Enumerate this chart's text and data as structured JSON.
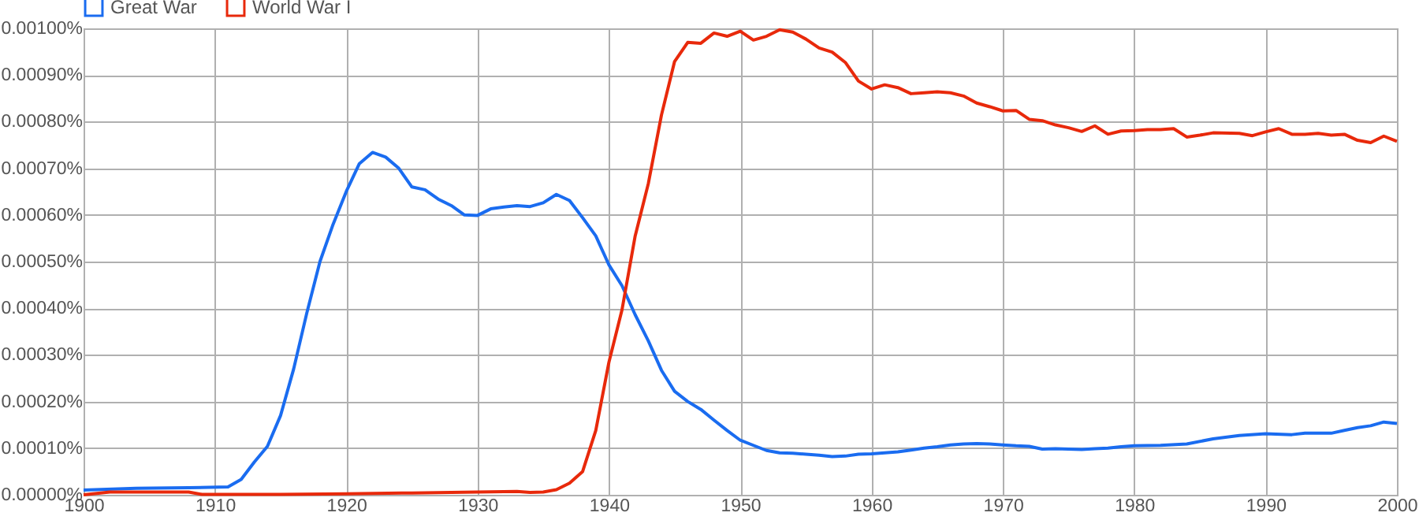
{
  "chart_data": {
    "type": "line",
    "legend": "top",
    "grid": true,
    "xlim": [
      1900,
      2000
    ],
    "xticks": [
      1900,
      1910,
      1920,
      1930,
      1940,
      1950,
      1960,
      1970,
      1980,
      1990,
      2000
    ],
    "ylim": [
      0,
      0.001
    ],
    "yticks": [
      {
        "value": 0,
        "label": "0.00000%"
      },
      {
        "value": 0.0001,
        "label": "0.00010%"
      },
      {
        "value": 0.0002,
        "label": "0.00020%"
      },
      {
        "value": 0.0003,
        "label": "0.00030%"
      },
      {
        "value": 0.0004,
        "label": "0.00040%"
      },
      {
        "value": 0.0005,
        "label": "0.00050%"
      },
      {
        "value": 0.0006,
        "label": "0.00060%"
      },
      {
        "value": 0.0007,
        "label": "0.00070%"
      },
      {
        "value": 0.0008,
        "label": "0.00080%"
      },
      {
        "value": 0.0009,
        "label": "0.00090%"
      },
      {
        "value": 0.001,
        "label": "0.00100%"
      }
    ],
    "series": [
      {
        "name": "Great War",
        "color": "#1a6cf0",
        "x": [
          1900,
          1904,
          1908,
          1911,
          1912,
          1913,
          1914,
          1915,
          1916,
          1917,
          1918,
          1919,
          1920,
          1921,
          1922,
          1923,
          1924,
          1925,
          1926,
          1927,
          1928,
          1929,
          1930,
          1931,
          1932,
          1933,
          1934,
          1935,
          1936,
          1937,
          1938,
          1939,
          1940,
          1941,
          1942,
          1943,
          1944,
          1945,
          1946,
          1947,
          1948,
          1949,
          1950,
          1951,
          1952,
          1953,
          1954,
          1955,
          1956,
          1957,
          1958,
          1959,
          1960,
          1961,
          1962,
          1963,
          1964,
          1965,
          1966,
          1967,
          1968,
          1969,
          1970,
          1971,
          1972,
          1973,
          1974,
          1975,
          1976,
          1977,
          1978,
          1979,
          1980,
          1982,
          1984,
          1986,
          1988,
          1990,
          1992,
          1993,
          1995,
          1996,
          1997,
          1998,
          1999,
          2000
        ],
        "values": [
          1e-05,
          1.4e-05,
          1.5e-05,
          1.7e-05,
          3.3e-05,
          7e-05,
          0.000104,
          0.00017,
          0.00027,
          0.00039,
          0.0005,
          0.00058,
          0.00065,
          0.00071,
          0.000734,
          0.000724,
          0.0007,
          0.00066,
          0.000654,
          0.000634,
          0.00062,
          0.0006,
          0.000599,
          0.000613,
          0.000617,
          0.00062,
          0.000618,
          0.000626,
          0.000644,
          0.000631,
          0.000594,
          0.000555,
          0.000493,
          0.000448,
          0.000386,
          0.00033,
          0.000267,
          0.000222,
          0.0002,
          0.000183,
          0.00016,
          0.000138,
          0.000117,
          0.000106,
          9.5e-05,
          9e-05,
          8.9e-05,
          8.7e-05,
          8.5e-05,
          8.2e-05,
          8.3e-05,
          8.7e-05,
          8.8e-05,
          9e-05,
          9.2e-05,
          9.6e-05,
          0.0001,
          0.000103,
          0.000107,
          0.000109,
          0.00011,
          0.000109,
          0.000107,
          0.000105,
          0.000104,
          9.8e-05,
          9.9e-05,
          9.8e-05,
          9.7e-05,
          9.9e-05,
          0.0001,
          0.000103,
          0.000105,
          0.000106,
          0.000109,
          0.00012,
          0.000127,
          0.000131,
          0.000129,
          0.000132,
          0.000132,
          0.000138,
          0.000144,
          0.000148,
          0.000156,
          0.000153
        ]
      },
      {
        "name": "World War I",
        "color": "#e8290b",
        "x": [
          1900,
          1902,
          1908,
          1909,
          1915,
          1920,
          1925,
          1930,
          1933,
          1934,
          1935,
          1936,
          1937,
          1938,
          1939,
          1940,
          1941,
          1942,
          1943,
          1944,
          1945,
          1946,
          1947,
          1948,
          1949,
          1950,
          1951,
          1952,
          1953,
          1954,
          1955,
          1956,
          1957,
          1958,
          1959,
          1960,
          1961,
          1962,
          1963,
          1964,
          1965,
          1966,
          1967,
          1968,
          1969,
          1970,
          1971,
          1972,
          1973,
          1974,
          1975,
          1976,
          1977,
          1978,
          1979,
          1980,
          1981,
          1982,
          1983,
          1984,
          1985,
          1986,
          1988,
          1989,
          1990,
          1991,
          1992,
          1993,
          1994,
          1995,
          1996,
          1997,
          1998,
          1999,
          2000
        ],
        "values": [
          0,
          6e-06,
          6e-06,
          1e-06,
          1e-06,
          2e-06,
          4e-06,
          6e-06,
          7e-06,
          5e-06,
          6e-06,
          1.1e-05,
          2.5e-05,
          5e-05,
          0.000138,
          0.000284,
          0.000397,
          0.000555,
          0.000667,
          0.000814,
          0.000929,
          0.00097,
          0.000968,
          0.00099,
          0.000983,
          0.000994,
          0.000975,
          0.000983,
          0.000997,
          0.000992,
          0.000977,
          0.000958,
          0.000949,
          0.000927,
          0.000887,
          0.00087,
          0.000879,
          0.000873,
          0.00086,
          0.000862,
          0.000864,
          0.000862,
          0.000855,
          0.00084,
          0.000832,
          0.000823,
          0.000824,
          0.000805,
          0.000802,
          0.000793,
          0.000787,
          0.000779,
          0.000791,
          0.000773,
          0.00078,
          0.000781,
          0.000783,
          0.000783,
          0.000785,
          0.000767,
          0.000771,
          0.000776,
          0.000775,
          0.00077,
          0.000778,
          0.000785,
          0.000773,
          0.000773,
          0.000775,
          0.000771,
          0.000773,
          0.00076,
          0.000755,
          0.000769,
          0.000758
        ]
      }
    ]
  }
}
